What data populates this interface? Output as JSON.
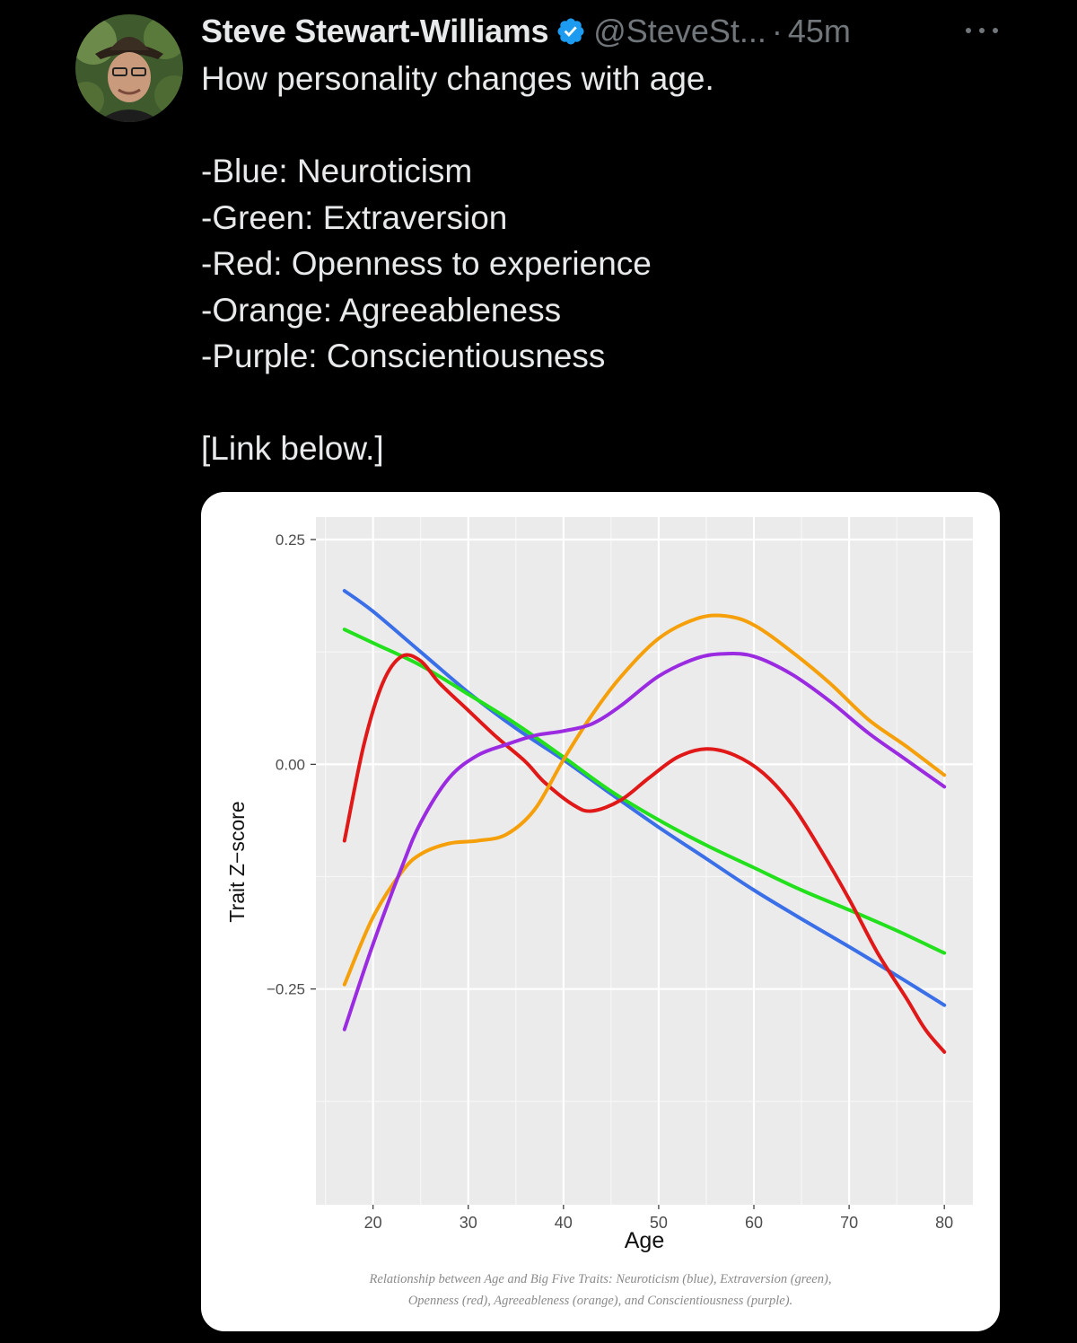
{
  "tweet": {
    "author": {
      "display_name": "Steve Stewart-Williams",
      "handle": "@SteveSt...",
      "verified": true,
      "avatar_icon": "profile-photo-avatar"
    },
    "separator": "·",
    "timestamp": "45m",
    "more_icon": "more-options-icon",
    "text_lines": [
      "How personality changes with age.",
      "",
      "-Blue: Neuroticism",
      "-Green: Extraversion",
      "-Red: Openness to experience",
      "-Orange: Agreeableness",
      "-Purple: Conscientiousness",
      "",
      "[Link below.]"
    ]
  },
  "colors": {
    "background": "#000000",
    "primary_text": "#e7e9ea",
    "secondary_text": "#71767b",
    "verified_badge": "#1d9bf0"
  },
  "chart_data": {
    "type": "line",
    "title": "",
    "xlabel": "Age",
    "ylabel": "Trait Z−score",
    "xlim": [
      14,
      83
    ],
    "ylim": [
      -0.49,
      0.275
    ],
    "xticks": [
      20,
      30,
      40,
      50,
      60,
      70,
      80
    ],
    "xtick_labels": [
      "20",
      "30",
      "40",
      "50",
      "60",
      "70",
      "80"
    ],
    "yticks": [
      0.25,
      0.0,
      -0.25
    ],
    "ytick_labels": [
      "0.25",
      "0.00",
      "−0.25"
    ],
    "grid": true,
    "legend": "none",
    "caption_lines": [
      "Relationship between Age and Big Five Traits: Neuroticism (blue), Extraversion (green),",
      "Openness (red), Agreeableness (orange), and Conscientiousness (purple)."
    ],
    "series": [
      {
        "color": "#3a6fe8",
        "x": [
          17,
          20,
          25,
          30,
          35,
          40,
          45,
          50,
          55,
          60,
          65,
          70,
          75,
          80
        ],
        "y": [
          0.193,
          0.17,
          0.125,
          0.08,
          0.04,
          0.005,
          -0.033,
          -0.07,
          -0.105,
          -0.14,
          -0.172,
          -0.203,
          -0.235,
          -0.268
        ]
      },
      {
        "color": "#22e01c",
        "x": [
          17,
          20,
          25,
          30,
          35,
          40,
          45,
          50,
          55,
          60,
          65,
          70,
          75,
          80
        ],
        "y": [
          0.15,
          0.135,
          0.11,
          0.078,
          0.045,
          0.008,
          -0.03,
          -0.062,
          -0.09,
          -0.115,
          -0.14,
          -0.162,
          -0.185,
          -0.21
        ]
      },
      {
        "color": "#e01818",
        "x": [
          17,
          19,
          21,
          23,
          25,
          27,
          30,
          33,
          36,
          38,
          41,
          43,
          46,
          49,
          52,
          55,
          58,
          61,
          64,
          67,
          70,
          73,
          76,
          78,
          80
        ],
        "y": [
          -0.085,
          0.02,
          0.09,
          0.12,
          0.115,
          0.09,
          0.06,
          0.03,
          0.003,
          -0.02,
          -0.045,
          -0.052,
          -0.04,
          -0.015,
          0.008,
          0.017,
          0.01,
          -0.01,
          -0.045,
          -0.095,
          -0.15,
          -0.21,
          -0.26,
          -0.295,
          -0.32
        ]
      },
      {
        "color": "#f5a00a",
        "x": [
          17,
          20,
          23,
          25,
          28,
          31,
          34,
          37,
          40,
          43,
          46,
          50,
          54,
          57,
          60,
          64,
          68,
          72,
          76,
          80
        ],
        "y": [
          -0.245,
          -0.17,
          -0.12,
          -0.1,
          -0.088,
          -0.085,
          -0.078,
          -0.05,
          0.005,
          0.055,
          0.097,
          0.14,
          0.162,
          0.165,
          0.155,
          0.125,
          0.09,
          0.05,
          0.02,
          -0.012
        ]
      },
      {
        "color": "#9a2be0",
        "x": [
          17,
          20,
          23,
          25,
          28,
          31,
          34,
          37,
          40,
          43,
          46,
          50,
          54,
          57,
          60,
          64,
          68,
          72,
          76,
          80
        ],
        "y": [
          -0.295,
          -0.2,
          -0.115,
          -0.065,
          -0.015,
          0.01,
          0.022,
          0.032,
          0.037,
          0.045,
          0.065,
          0.098,
          0.118,
          0.123,
          0.12,
          0.1,
          0.07,
          0.035,
          0.005,
          -0.025
        ]
      }
    ]
  }
}
